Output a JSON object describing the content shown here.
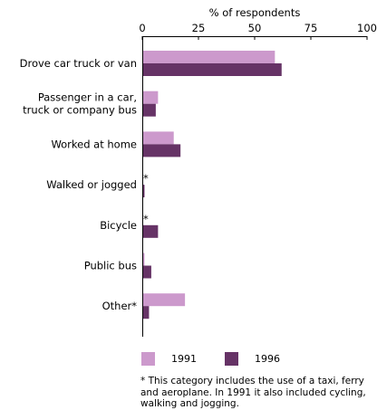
{
  "chart_data": {
    "type": "bar",
    "orientation": "horizontal",
    "title": "",
    "xlabel": "% of respondents",
    "ylabel": "",
    "xlim": [
      0,
      100
    ],
    "xticks": [
      "0",
      "25",
      "50",
      "75",
      "100"
    ],
    "categories": [
      [
        "Drove car truck or van"
      ],
      [
        "Passenger in a car,",
        "truck or company bus"
      ],
      [
        "Worked at home"
      ],
      [
        "Walked or jogged"
      ],
      [
        "Bicycle"
      ],
      [
        "Public bus"
      ],
      [
        "Other*"
      ]
    ],
    "series": [
      {
        "name": "1991",
        "color": "#cc99cc",
        "values": [
          59,
          7,
          14,
          null,
          null,
          1,
          19
        ],
        "markers": [
          "",
          "",
          "",
          "*",
          "*",
          "",
          ""
        ]
      },
      {
        "name": "1996",
        "color": "#663366",
        "values": [
          62,
          6,
          17,
          1,
          7,
          4,
          3
        ]
      }
    ],
    "legend": "bottom"
  },
  "footnote": "* This category includes the use of a taxi, ferry and aeroplane.  In 1991 it also included cycling, walking and jogging."
}
